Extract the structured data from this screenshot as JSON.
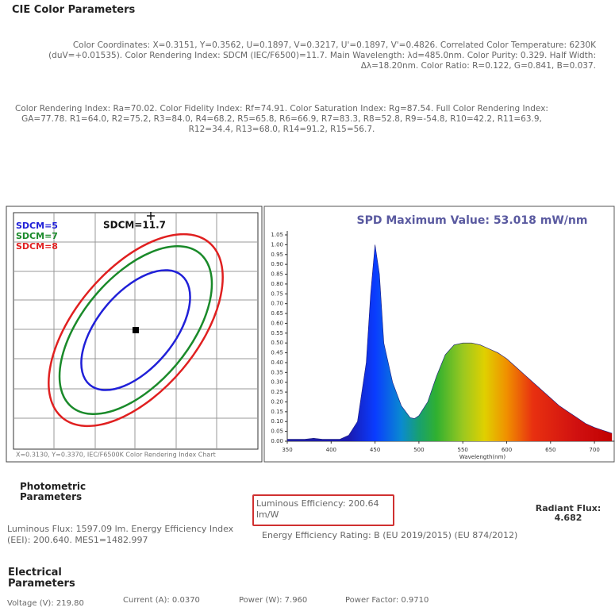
{
  "header": {
    "title": "CIE Color Parameters"
  },
  "cie": {
    "coordinates_text": "Color Coordinates: X=0.3151, Y=0.3562, U=0.1897, V=0.3217, U'=0.1897, V'=0.4826. Correlated Color Temperature: 6230K (duV=+0.01535). Color Rendering Index: SDCM (IEC/F6500)=11.7. Main Wavelength: λd=485.0nm. Color Purity: 0.329. Half Width: Δλ=18.20nm. Color Ratio: R=0.122, G=0.841, B=0.037.",
    "rendering_text": "Color Rendering Index: Ra=70.02. Color Fidelity Index: Rf=74.91. Color Saturation Index: Rg=87.54. Full Color Rendering Index: GA=77.78. R1=64.0, R2=75.2, R3=84.0, R4=68.2, R5=65.8, R6=66.9, R7=83.3, R8=52.8, R9=-54.8, R10=42.2, R11=63.9, R12=34.4, R13=68.0, R14=91.2, R15=56.7."
  },
  "chart_data": [
    {
      "type": "ellipse",
      "title": "SDCM=11.7",
      "caption": "X=0.3130, Y=0.3370, IEC/F6500K Color Rendering Index Chart",
      "series": [
        {
          "name": "SDCM=5",
          "color": "#2020d8",
          "level": 5
        },
        {
          "name": "SDCM=7",
          "color": "#1a8a2a",
          "level": 7
        },
        {
          "name": "SDCM=8",
          "color": "#e02020",
          "level": 8
        }
      ]
    },
    {
      "type": "area",
      "title": "SPD Maximum Value: 53.018 mW/nm",
      "x_label": "Wavelength(nm)",
      "x": [
        350,
        360,
        370,
        380,
        390,
        400,
        410,
        420,
        430,
        440,
        445,
        450,
        455,
        460,
        470,
        480,
        490,
        495,
        500,
        510,
        520,
        530,
        540,
        550,
        560,
        570,
        580,
        590,
        600,
        610,
        620,
        630,
        640,
        650,
        660,
        670,
        680,
        690,
        700,
        710,
        720
      ],
      "values": [
        0.01,
        0.01,
        0.01,
        0.015,
        0.01,
        0.01,
        0.01,
        0.03,
        0.1,
        0.4,
        0.75,
        1.0,
        0.85,
        0.5,
        0.3,
        0.18,
        0.12,
        0.115,
        0.13,
        0.2,
        0.33,
        0.44,
        0.49,
        0.5,
        0.5,
        0.49,
        0.47,
        0.45,
        0.42,
        0.38,
        0.34,
        0.3,
        0.26,
        0.22,
        0.18,
        0.15,
        0.12,
        0.09,
        0.07,
        0.055,
        0.04
      ],
      "xlim": [
        350,
        723
      ],
      "xticks": [
        350,
        400,
        450,
        500,
        550,
        600,
        650,
        700
      ],
      "ylim": [
        0,
        1.05
      ],
      "yticks": [
        {
          "value": 0,
          "label": "0.00"
        },
        {
          "value": 0.05,
          "label": "0.05"
        },
        {
          "value": 0.1,
          "label": "0.10"
        },
        {
          "value": 0.15,
          "label": "0.15"
        },
        {
          "value": 0.2,
          "label": "0.20"
        },
        {
          "value": 0.25,
          "label": "0.25"
        },
        {
          "value": 0.3,
          "label": "0.30"
        },
        {
          "value": 0.35,
          "label": "0.35"
        },
        {
          "value": 0.4,
          "label": "0.40"
        },
        {
          "value": 0.45,
          "label": "0.45"
        },
        {
          "value": 0.5,
          "label": "0.50"
        },
        {
          "value": 0.55,
          "label": "0.55"
        },
        {
          "value": 0.6,
          "label": "0.60"
        },
        {
          "value": 0.65,
          "label": "0.65"
        },
        {
          "value": 0.7,
          "label": "0.70"
        },
        {
          "value": 0.75,
          "label": "0.75"
        },
        {
          "value": 0.8,
          "label": "0.80"
        },
        {
          "value": 0.85,
          "label": "0.85"
        },
        {
          "value": 0.9,
          "label": "0.90"
        },
        {
          "value": 0.95,
          "label": "0.95"
        },
        {
          "value": 1,
          "label": "1.00"
        },
        {
          "value": 1.05,
          "label": "1.05"
        }
      ]
    }
  ],
  "photometric": {
    "title": "Photometric Parameters",
    "luminous_efficiency": "Luminous Efficiency: 200.64 lm/W",
    "radiant_flux": "Radiant Flux: 4.682",
    "luminous_flux": "Luminous Flux: 1597.09 lm. Energy Efficiency Index (EEI): 200.640. MES1=1482.997",
    "rating": "Energy Efficiency Rating: B (EU 2019/2015) (EU 874/2012)"
  },
  "electrical": {
    "title": "Electrical Parameters",
    "voltage": "Voltage (V): 219.80",
    "current": "Current (A): 0.0370",
    "power": "Power (W): 7.960",
    "power_factor": "Power Factor: 0.9710"
  }
}
